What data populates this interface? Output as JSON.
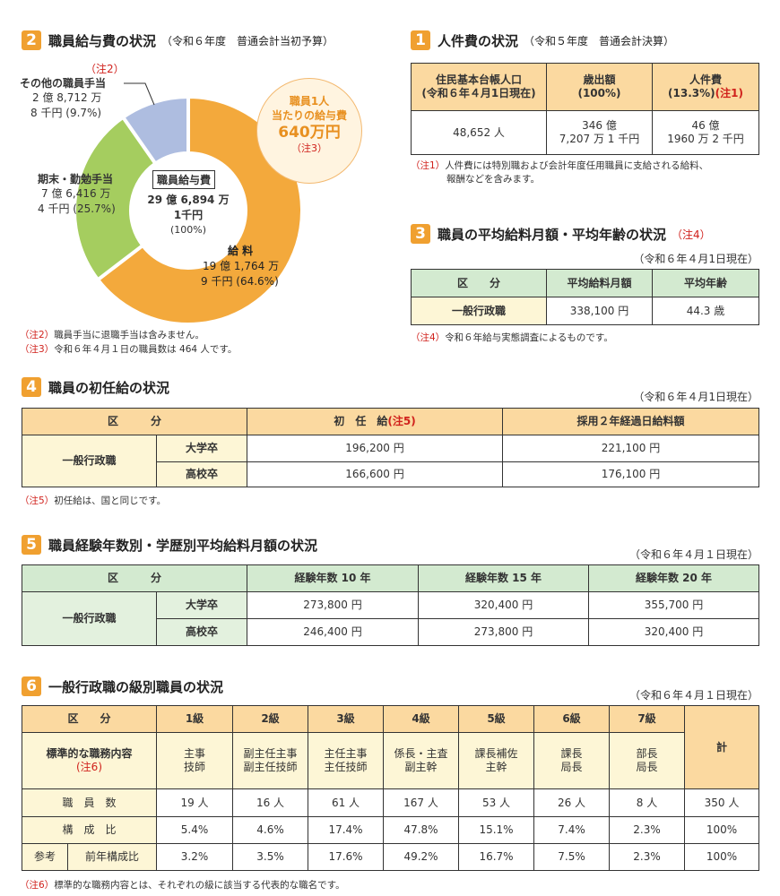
{
  "colors": {
    "accent": "#f0a030",
    "salary": "#f3a93c",
    "bonus": "#a5cd5f",
    "other": "#aebde0",
    "note_red": "#d0211c"
  },
  "s2": {
    "num": "2",
    "title": "職員給与費の状況",
    "sub": "（令和６年度　普通会計当初予算）",
    "center_label": "職員給与費",
    "center_amount": "29 億 6,894 万",
    "center_amount2": "1千円",
    "center_pct": "(100%)",
    "other_note": "（注2）",
    "other_label": "その他の職員手当",
    "other_amount": "2 億 8,712 万",
    "other_amount2": "8 千円 (9.7%)",
    "bonus_label": "期末・勤勉手当",
    "bonus_amount": "7 億 6,416 万",
    "bonus_amount2": "4 千円 (25.7%)",
    "salary_label": "給 料",
    "salary_amount": "19 億 1,764 万",
    "salary_amount2": "9 千円 (64.6%)",
    "per_l1": "職員1人",
    "per_l2": "当たりの給与費",
    "per_value": "640万円",
    "per_note": "（注3）",
    "note2_tag": "（注2）",
    "note2": "職員手当に退職手当は含みません。",
    "note3_tag": "（注3）",
    "note3": "令和６年４月１日の職員数は 464 人です。"
  },
  "chart_data": {
    "type": "pie",
    "title": "職員給与費",
    "categories": [
      "給料",
      "期末・勤勉手当",
      "その他の職員手当"
    ],
    "values": [
      64.6,
      25.7,
      9.7
    ]
  },
  "s1": {
    "num": "1",
    "title": "人件費の状況",
    "sub": "（令和５年度　普通会計決算）",
    "h1a": "住民基本台帳人口",
    "h1b": "(令和６年４月1日現在)",
    "h2a": "歳出額",
    "h2b": "(100%)",
    "h3a": "人件費",
    "h3b": "(13.3%)",
    "h3n": "(注1)",
    "v1": "48,652 人",
    "v2a": "346 億",
    "v2b": "7,207 万 1 千円",
    "v3a": "46 億",
    "v3b": "1960 万 2 千円",
    "note_tag": "（注1）",
    "note_l1": "人件費には特別職および会計年度任用職員に支給される給料、",
    "note_l2": "報酬などを含みます。"
  },
  "s3": {
    "num": "3",
    "title": "職員の平均給料月額・平均年齢の状況",
    "title_note": "（注4）",
    "asof": "（令和６年４月1日現在）",
    "h1": "区　　分",
    "h2": "平均給料月額",
    "h3": "平均年齢",
    "r1": "一般行政職",
    "v1": "338,100 円",
    "v2": "44.3 歳",
    "note_tag": "（注4）",
    "note": "令和６年給与実態調査によるものです。"
  },
  "s4": {
    "num": "4",
    "title": "職員の初任給の状況",
    "asof": "（令和６年４月1日現在）",
    "h1": "区　　　分",
    "h2": "初　任　給",
    "h2n": "(注5)",
    "h3": "採用２年経過日給料額",
    "cat": "一般行政職",
    "rows": [
      {
        "label": "大学卒",
        "a": "196,200 円",
        "b": "221,100 円"
      },
      {
        "label": "高校卒",
        "a": "166,600 円",
        "b": "176,100 円"
      }
    ],
    "note_tag": "（注5）",
    "note": "初任給は、国と同じです。"
  },
  "s5": {
    "num": "5",
    "title": "職員経験年数別・学歴別平均給料月額の状況",
    "asof": "（令和６年４月１日現在）",
    "h1": "区　　　分",
    "h2": "経験年数 10 年",
    "h3": "経験年数 15 年",
    "h4": "経験年数 20 年",
    "cat": "一般行政職",
    "rows": [
      {
        "label": "大学卒",
        "a": "273,800 円",
        "b": "320,400 円",
        "c": "355,700 円"
      },
      {
        "label": "高校卒",
        "a": "246,400 円",
        "b": "273,800 円",
        "c": "320,400 円"
      }
    ]
  },
  "s6": {
    "num": "6",
    "title": "一般行政職の級別職員の状況",
    "asof": "（令和６年４月１日現在）",
    "h0": "区　　分",
    "grades": [
      "1級",
      "2級",
      "3級",
      "4級",
      "5級",
      "6級",
      "7級"
    ],
    "total": "計",
    "duty_label": "標準的な職務内容",
    "duty_note": "(注6)",
    "duties": [
      [
        "主事",
        "技師"
      ],
      [
        "副主任主事",
        "副主任技師"
      ],
      [
        "主任主事",
        "主任技師"
      ],
      [
        "係長・主査",
        "副主幹"
      ],
      [
        "課長補佐",
        "主幹"
      ],
      [
        "課長",
        "局長"
      ],
      [
        "部長",
        "局長"
      ]
    ],
    "count_label": "職　員　数",
    "counts": [
      "19 人",
      "16 人",
      "61 人",
      "167 人",
      "53 人",
      "26 人",
      "8 人",
      "350 人"
    ],
    "ratio_label": "構　成　比",
    "ratios": [
      "5.4%",
      "4.6%",
      "17.4%",
      "47.8%",
      "15.1%",
      "7.4%",
      "2.3%",
      "100%"
    ],
    "ref_label": "参考",
    "prev_label": "前年構成比",
    "prev": [
      "3.2%",
      "3.5%",
      "17.6%",
      "49.2%",
      "16.7%",
      "7.5%",
      "2.3%",
      "100%"
    ],
    "note_tag": "（注6）",
    "note": "標準的な職務内容とは、それぞれの級に該当する代表的な職名です。"
  }
}
